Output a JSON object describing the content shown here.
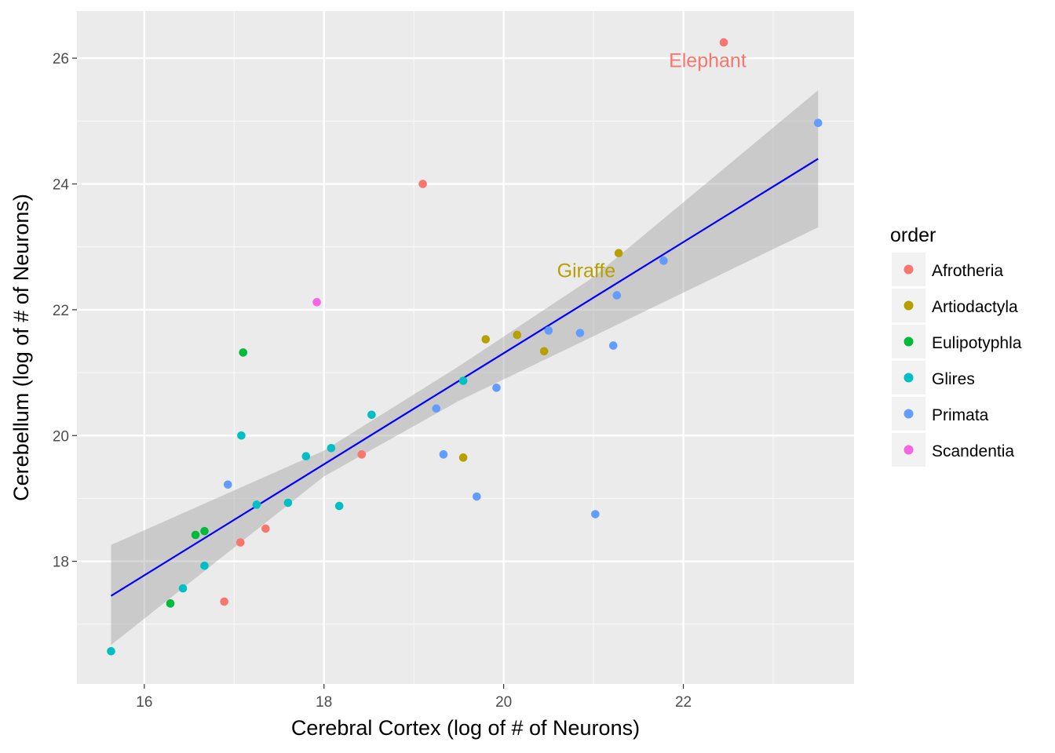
{
  "chart_data": {
    "type": "scatter",
    "xlabel": "Cerebral Cortex (log of # of Neurons)",
    "ylabel": "Cerebellum (log of # of Neurons)",
    "xlim": [
      15.25,
      23.9
    ],
    "ylim": [
      16.05,
      26.75
    ],
    "x_ticks": [
      16,
      18,
      20,
      22
    ],
    "y_ticks": [
      18,
      20,
      22,
      24,
      26
    ],
    "grid": true,
    "legend": {
      "title": "order",
      "position": "right",
      "entries": [
        {
          "label": "Afrotheria",
          "color": "#F8766D"
        },
        {
          "label": "Artiodactyla",
          "color": "#B79F00"
        },
        {
          "label": "Eulipotyphla",
          "color": "#00BA38"
        },
        {
          "label": "Glires",
          "color": "#00BFC4"
        },
        {
          "label": "Primata",
          "color": "#619CFF"
        },
        {
          "label": "Scandentia",
          "color": "#F564E3"
        }
      ]
    },
    "series": [
      {
        "name": "Afrotheria",
        "color": "#F8766D",
        "points": [
          [
            22.45,
            26.25
          ],
          [
            19.1,
            24.0
          ],
          [
            18.42,
            19.7
          ],
          [
            17.07,
            18.3
          ],
          [
            17.35,
            18.52
          ],
          [
            16.89,
            17.36
          ]
        ]
      },
      {
        "name": "Artiodactyla",
        "color": "#B79F00",
        "points": [
          [
            21.28,
            22.9
          ],
          [
            19.8,
            21.53
          ],
          [
            20.15,
            21.6
          ],
          [
            20.45,
            21.34
          ],
          [
            19.55,
            19.65
          ]
        ]
      },
      {
        "name": "Eulipotyphla",
        "color": "#00BA38",
        "points": [
          [
            17.1,
            21.32
          ],
          [
            16.57,
            18.42
          ],
          [
            16.67,
            18.48
          ],
          [
            16.29,
            17.33
          ]
        ]
      },
      {
        "name": "Glires",
        "color": "#00BFC4",
        "points": [
          [
            17.08,
            20.0
          ],
          [
            18.17,
            18.88
          ],
          [
            17.8,
            19.67
          ],
          [
            18.08,
            19.8
          ],
          [
            18.53,
            20.33
          ],
          [
            19.55,
            20.87
          ],
          [
            17.25,
            18.9
          ],
          [
            17.6,
            18.93
          ],
          [
            16.67,
            17.93
          ],
          [
            16.43,
            17.57
          ],
          [
            15.63,
            16.57
          ]
        ]
      },
      {
        "name": "Primata",
        "color": "#619CFF",
        "points": [
          [
            23.5,
            24.97
          ],
          [
            21.78,
            22.78
          ],
          [
            21.26,
            22.23
          ],
          [
            21.22,
            21.43
          ],
          [
            20.85,
            21.63
          ],
          [
            20.5,
            21.67
          ],
          [
            19.92,
            20.76
          ],
          [
            19.25,
            20.43
          ],
          [
            19.33,
            19.7
          ],
          [
            19.7,
            19.03
          ],
          [
            21.02,
            18.75
          ],
          [
            16.93,
            19.22
          ]
        ]
      },
      {
        "name": "Scandentia",
        "color": "#F564E3",
        "points": [
          [
            17.92,
            22.12
          ]
        ]
      }
    ],
    "annotations": [
      {
        "text": "Elephant",
        "x": 22.27,
        "y": 25.97,
        "color": "#F8766D"
      },
      {
        "text": "Giraffe",
        "x": 20.92,
        "y": 22.63,
        "color": "#B79F00"
      }
    ],
    "trend_line": {
      "color": "#0000FF",
      "from": [
        15.63,
        17.45
      ],
      "to": [
        23.5,
        24.4
      ],
      "ci_band": [
        [
          15.63,
          16.67,
          18.26
        ],
        [
          18.0,
          19.35,
          19.76
        ],
        [
          19.5,
          20.55,
          21.1
        ],
        [
          21.0,
          21.58,
          22.52
        ],
        [
          23.5,
          23.31,
          25.49
        ]
      ]
    }
  }
}
